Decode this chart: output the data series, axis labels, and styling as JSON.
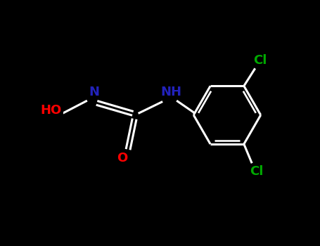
{
  "background_color": "#000000",
  "bond_color": "#ffffff",
  "atom_colors": {
    "HO": "#ff0000",
    "N": "#2222bb",
    "NH": "#2222bb",
    "O": "#ff0000",
    "Cl": "#00aa00"
  },
  "fig_width": 4.55,
  "fig_height": 3.5,
  "dpi": 100,
  "xlim": [
    0,
    10
  ],
  "ylim": [
    0,
    7.7
  ],
  "bond_lw": 2.2,
  "label_fontsize": 13
}
